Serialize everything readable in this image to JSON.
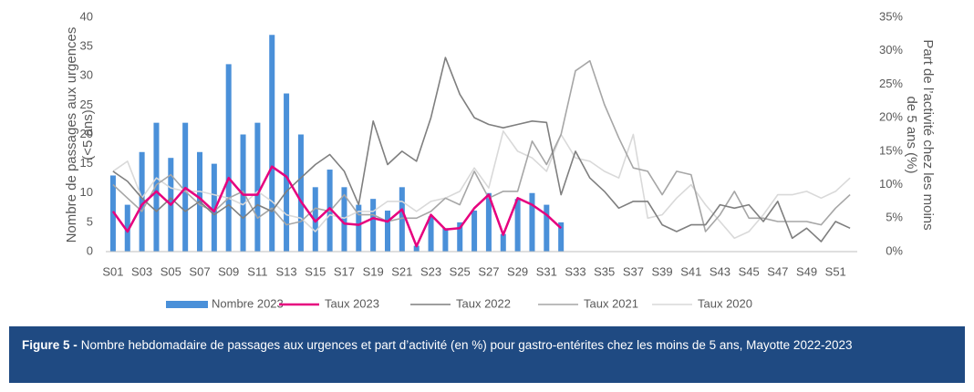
{
  "chart_data": {
    "type": "bar_line",
    "y_label": "Nombre de passages aux urgences (<5 ans)",
    "y2_label": "Part de l’activité chez les moins de 5 ans (%)",
    "caption_label": "Figure 5 -",
    "caption": "Nombre hebdomadaire de passages aux urgences et part d’activité (en %) pour gastro-entérites chez les moins de 5 ans, Mayotte 2022-2023",
    "categories": [
      "S01",
      null,
      "S03",
      null,
      "S05",
      null,
      "S07",
      null,
      "S09",
      null,
      "S11",
      null,
      "S13",
      null,
      "S15",
      null,
      "S17",
      null,
      "S19",
      null,
      "S21",
      null,
      "S23",
      null,
      "S25",
      null,
      "S27",
      null,
      "S29",
      null,
      "S31",
      null,
      "S33",
      null,
      "S35",
      null,
      "S37",
      null,
      "S39",
      null,
      "S41",
      null,
      "S43",
      null,
      "S45",
      null,
      "S47",
      null,
      "S49",
      null,
      "S51",
      null
    ],
    "ylim": [
      0,
      40
    ],
    "yticks": [
      0,
      5,
      10,
      15,
      20,
      25,
      30,
      35,
      40
    ],
    "y2lim": [
      0,
      35
    ],
    "y2ticks": [
      {
        "value": 0,
        "label": "0%"
      },
      {
        "value": 5,
        "label": "5%"
      },
      {
        "value": 10,
        "label": "10%"
      },
      {
        "value": 15,
        "label": "15%"
      },
      {
        "value": 20,
        "label": "20%"
      },
      {
        "value": 25,
        "label": "25%"
      },
      {
        "value": 30,
        "label": "30%"
      },
      {
        "value": 35,
        "label": "35%"
      }
    ],
    "grid": false,
    "legend": "bottom",
    "series": [
      {
        "name": "Nombre 2023",
        "type": "bar",
        "axis": "y",
        "color": "#4a90d9",
        "values": [
          13,
          8,
          17,
          22,
          16,
          22,
          17,
          15,
          32,
          20,
          22,
          37,
          27,
          20,
          11,
          14,
          11,
          8,
          9,
          7,
          11,
          1,
          6,
          4,
          5,
          7,
          10,
          3,
          9,
          10,
          8,
          5,
          null,
          null,
          null,
          null,
          null,
          null,
          null,
          null,
          null,
          null,
          null,
          null,
          null,
          null,
          null,
          null,
          null,
          null,
          null,
          null
        ]
      },
      {
        "name": "Taux 2023",
        "type": "line",
        "axis": "y2",
        "color": "#e6007e",
        "values": [
          6,
          3,
          7,
          9,
          7,
          9.5,
          8,
          6,
          11,
          8.5,
          8.5,
          12.7,
          11.2,
          7.5,
          4.5,
          6.5,
          4.2,
          4,
          5,
          4.5,
          6.3,
          0.8,
          5.5,
          3.3,
          3.5,
          6.5,
          8.5,
          2.5,
          8,
          7,
          5.5,
          3.5,
          null,
          null,
          null,
          null,
          null,
          null,
          null,
          null,
          null,
          null,
          null,
          null,
          null,
          null,
          null,
          null,
          null,
          null,
          null,
          null
        ]
      },
      {
        "name": "Taux 2022",
        "type": "line",
        "axis": "y2",
        "color": "#7f7f7f",
        "values": [
          12,
          10.5,
          8,
          6,
          8,
          6,
          7.5,
          5.5,
          7,
          5,
          7,
          6,
          9,
          11,
          13,
          14.5,
          12,
          7,
          19.5,
          13,
          15,
          13.5,
          20,
          29,
          23.5,
          20,
          19,
          18.5,
          19,
          19.5,
          19.3,
          8.5,
          15,
          11,
          9,
          6.5,
          7.5,
          7.5,
          4,
          3,
          4,
          4,
          7,
          6.5,
          7,
          4.5,
          7.5,
          2,
          3.5,
          1.5,
          4.5,
          3.5
        ]
      },
      {
        "name": "Taux 2021",
        "type": "line",
        "axis": "y2",
        "color": "#a6a6a6",
        "values": [
          10,
          8,
          6,
          10,
          11.5,
          9,
          7,
          6,
          8,
          9,
          5,
          6.5,
          4,
          4.5,
          6.5,
          6,
          8.5,
          5.5,
          5.5,
          4.5,
          5,
          5,
          6,
          8,
          7,
          12,
          8,
          9,
          9,
          16.5,
          13,
          17.5,
          27,
          28.5,
          22,
          17,
          12.5,
          12,
          8.5,
          12,
          11.5,
          3,
          5.5,
          9,
          5,
          5,
          4.5,
          4.5,
          4.5,
          4,
          6.5,
          8.5
        ]
      },
      {
        "name": "Taux 2020",
        "type": "line",
        "axis": "y2",
        "color": "#d9d9d9",
        "values": [
          12,
          13.5,
          8,
          11,
          9.5,
          9,
          9,
          8.5,
          8,
          7,
          9,
          7.5,
          5.5,
          5,
          3,
          5.5,
          5,
          6,
          6,
          7.5,
          7.5,
          6,
          7.5,
          8,
          9,
          12.5,
          9.5,
          18,
          15,
          14,
          12,
          17.5,
          14,
          13.5,
          12,
          11,
          17.5,
          5,
          5.5,
          8,
          10,
          7,
          4.5,
          2,
          3,
          5.5,
          8.5,
          8.5,
          9,
          8,
          9,
          11
        ]
      }
    ]
  }
}
